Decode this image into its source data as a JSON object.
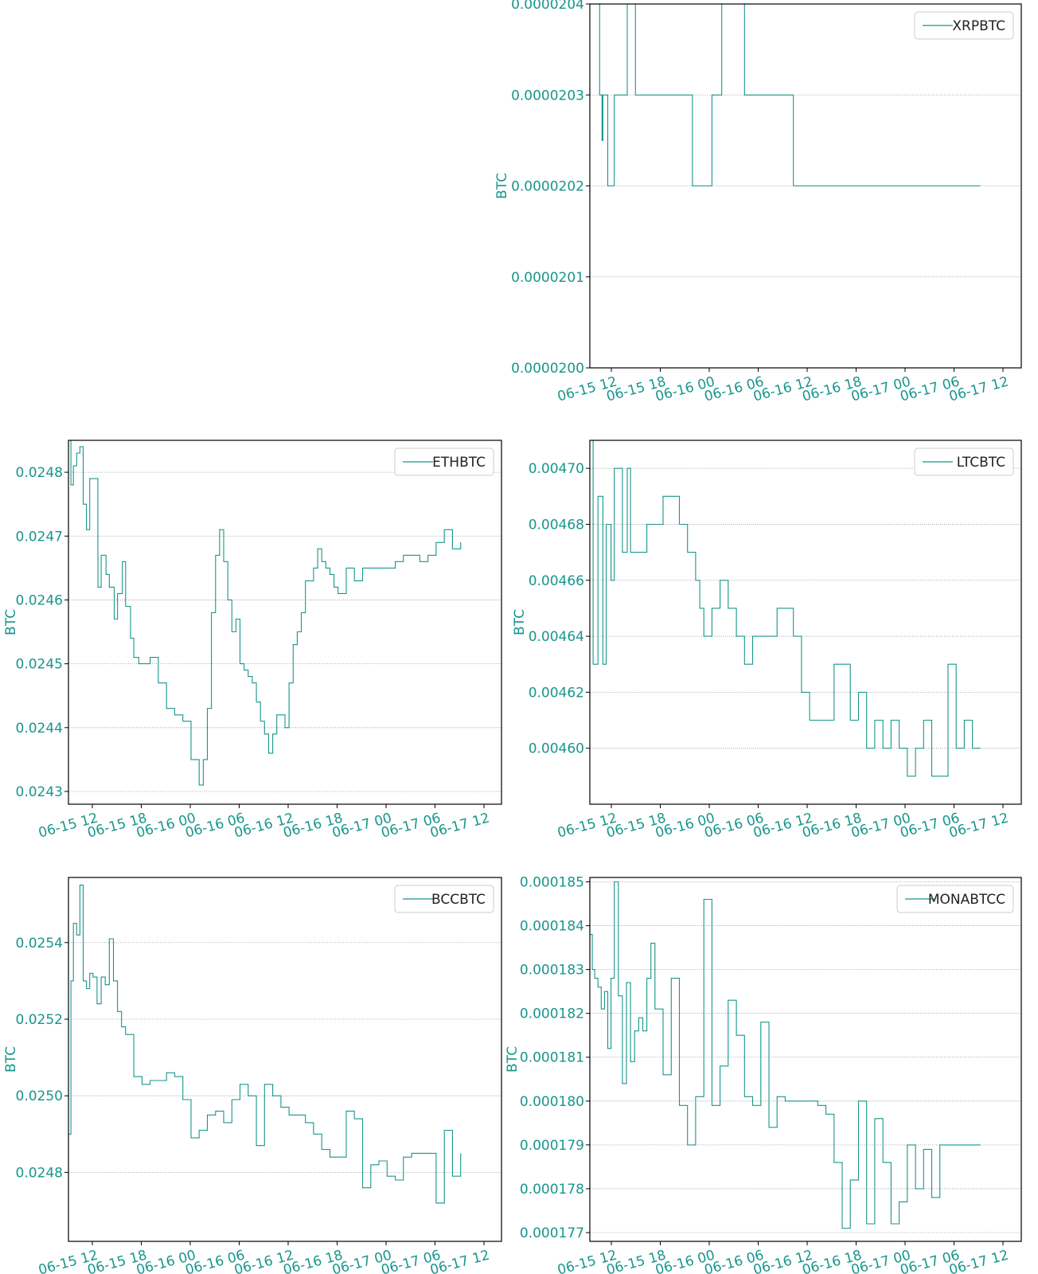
{
  "colors": {
    "accent": "#17968c",
    "frame": "#000000",
    "grid": "#999999"
  },
  "chart_data": [
    {
      "type": "line",
      "ylabel": "BTC",
      "xlabel": "",
      "legend": "top-right",
      "grid": "horizontal dotted",
      "x_tick_labels": [
        "06-15 12",
        "06-15 18",
        "06-16 00",
        "06-16 06",
        "06-16 12",
        "06-16 18",
        "06-17 00",
        "06-17 06",
        "06-17 12"
      ],
      "xlim": [
        0,
        53
      ],
      "ylim": [
        2e-05,
        2.04e-05
      ],
      "y_ticks": [
        2e-05,
        2.01e-05,
        2.02e-05,
        2.03e-05,
        2.04e-05
      ],
      "y_tick_labels": [
        "0.0000200",
        "0.0000201",
        "0.0000202",
        "0.0000203",
        "0.0000204"
      ],
      "series": [
        {
          "name": "XRPBTC",
          "x": [
            0,
            0.4,
            0.6,
            1.0,
            1.2,
            1.5,
            1.6,
            2.0,
            2.2,
            2.6,
            3.0,
            3.5,
            4.2,
            4.6,
            5.3,
            5.6,
            6.0,
            6.4,
            6.8,
            7.2,
            7.8,
            8.4,
            9.5,
            10.4,
            11.1,
            12.4,
            12.6,
            13.1,
            13.5,
            14.0,
            14.4,
            15.0,
            15.6,
            16.2,
            17.5,
            19.0,
            20.0,
            20.5,
            21.0,
            21.5,
            22.0,
            22.5,
            23.5,
            24.0,
            25.0,
            25.5,
            26.5,
            27.5,
            28.0,
            29.0,
            30.0,
            31.0,
            31.2,
            31.6,
            32.0,
            32.6,
            33.0,
            33.5,
            34.0,
            35.0,
            36.0,
            37.0,
            38.0,
            39.0,
            39.5,
            40.5,
            41.0,
            41.5,
            42.0,
            43.0,
            44.0,
            45.0,
            47.0,
            48.0
          ],
          "y": [
            2.04e-05,
            2.04e-05,
            2.05e-05,
            2.05e-05,
            2.03e-05,
            2.025e-05,
            2.03e-05,
            2.03e-05,
            2.02e-05,
            2.02e-05,
            2.03e-05,
            2.03e-05,
            2.03e-05,
            2.04e-05,
            2.04e-05,
            2.03e-05,
            2.03e-05,
            2.03e-05,
            2.03e-05,
            2.03e-05,
            2.03e-05,
            2.03e-05,
            2.03e-05,
            2.03e-05,
            2.03e-05,
            2.03e-05,
            2.02e-05,
            2.02e-05,
            2.02e-05,
            2.02e-05,
            2.02e-05,
            2.03e-05,
            2.03e-05,
            2.04e-05,
            2.04e-05,
            2.03e-05,
            2.03e-05,
            2.03e-05,
            2.03e-05,
            2.03e-05,
            2.03e-05,
            2.03e-05,
            2.03e-05,
            2.03e-05,
            2.02e-05,
            2.02e-05,
            2.02e-05,
            2.02e-05,
            2.02e-05,
            2.02e-05,
            2.02e-05,
            2.02e-05,
            2.02e-05,
            2.02e-05,
            2.02e-05,
            2.02e-05,
            2.02e-05,
            2.02e-05,
            2.02e-05,
            2.02e-05,
            2.02e-05,
            2.02e-05,
            2.02e-05,
            2.02e-05,
            2.02e-05,
            2.02e-05,
            2.02e-05,
            2.02e-05,
            2.02e-05,
            2.02e-05,
            2.02e-05,
            2.02e-05,
            2.02e-05,
            2.02e-05
          ]
        }
      ]
    },
    {
      "type": "line",
      "ylabel": "BTC",
      "xlabel": "",
      "legend": "top-right",
      "grid": "horizontal dotted",
      "x_tick_labels": [
        "06-15 12",
        "06-15 18",
        "06-16 00",
        "06-16 06",
        "06-16 12",
        "06-16 18",
        "06-17 00",
        "06-17 06",
        "06-17 12"
      ],
      "xlim": [
        0,
        53
      ],
      "ylim": [
        0.02428,
        0.02485
      ],
      "y_ticks": [
        0.0243,
        0.0244,
        0.0245,
        0.0246,
        0.0247,
        0.0248
      ],
      "y_tick_labels": [
        "0.0243",
        "0.0244",
        "0.0245",
        "0.0246",
        "0.0247",
        "0.0248"
      ],
      "series": [
        {
          "name": "ETHBTC",
          "x": [
            0,
            0.3,
            0.6,
            1.0,
            1.4,
            1.8,
            2.2,
            2.6,
            3.0,
            3.6,
            4.0,
            4.6,
            5.0,
            5.6,
            6.0,
            6.6,
            7.0,
            7.6,
            8.0,
            8.6,
            9.0,
            9.6,
            10.0,
            11.0,
            12.0,
            13.0,
            14.0,
            15.0,
            16.0,
            16.5,
            17.0,
            17.5,
            18.0,
            18.5,
            19.0,
            19.5,
            20.0,
            20.5,
            21.0,
            21.5,
            22.0,
            22.5,
            23.0,
            23.5,
            24.0,
            24.5,
            25.0,
            25.5,
            26.0,
            26.5,
            27.0,
            27.5,
            28.0,
            28.5,
            29.0,
            29.5,
            30.0,
            30.5,
            31.0,
            31.5,
            32.0,
            32.5,
            33.0,
            34.0,
            35.0,
            36.0,
            37.0,
            38.0,
            39.0,
            40.0,
            41.0,
            42.0,
            43.0,
            44.0,
            45.0,
            46.0,
            47.0,
            48.0
          ],
          "y": [
            0.02485,
            0.02478,
            0.02481,
            0.02483,
            0.02484,
            0.02475,
            0.02471,
            0.02479,
            0.02479,
            0.02462,
            0.02467,
            0.02464,
            0.02462,
            0.02457,
            0.02461,
            0.02466,
            0.02459,
            0.02454,
            0.02451,
            0.0245,
            0.0245,
            0.0245,
            0.02451,
            0.02447,
            0.02443,
            0.02442,
            0.02441,
            0.02435,
            0.02431,
            0.02435,
            0.02443,
            0.02458,
            0.02467,
            0.02471,
            0.02466,
            0.0246,
            0.02455,
            0.02457,
            0.0245,
            0.02449,
            0.02448,
            0.02447,
            0.02444,
            0.02441,
            0.02439,
            0.02436,
            0.02439,
            0.02442,
            0.02442,
            0.0244,
            0.02447,
            0.02453,
            0.02455,
            0.02458,
            0.02463,
            0.02463,
            0.02465,
            0.02468,
            0.02466,
            0.02465,
            0.02464,
            0.02462,
            0.02461,
            0.02465,
            0.02463,
            0.02465,
            0.02465,
            0.02465,
            0.02465,
            0.02466,
            0.02467,
            0.02467,
            0.02466,
            0.02467,
            0.02469,
            0.02471,
            0.02468,
            0.02469
          ]
        }
      ]
    },
    {
      "type": "line",
      "ylabel": "BTC",
      "xlabel": "",
      "legend": "top-right",
      "grid": "horizontal dotted",
      "x_tick_labels": [
        "06-15 12",
        "06-15 18",
        "06-16 00",
        "06-16 06",
        "06-16 12",
        "06-16 18",
        "06-17 00",
        "06-17 06",
        "06-17 12"
      ],
      "xlim": [
        0,
        53
      ],
      "ylim": [
        0.00458,
        0.00471
      ],
      "y_ticks": [
        0.0046,
        0.00462,
        0.00464,
        0.00466,
        0.00468,
        0.0047
      ],
      "y_tick_labels": [
        "0.00460",
        "0.00462",
        "0.00464",
        "0.00466",
        "0.00468",
        "0.00470"
      ],
      "series": [
        {
          "name": "LTCBTC",
          "x": [
            0,
            0.4,
            1.0,
            1.6,
            2.0,
            2.6,
            3.0,
            4.0,
            4.6,
            5.0,
            6.0,
            7.0,
            8.0,
            9.0,
            10.0,
            11.0,
            12.0,
            13.0,
            13.5,
            14.0,
            15.0,
            16.0,
            17.0,
            18.0,
            19.0,
            20.0,
            21.0,
            22.0,
            23.0,
            24.0,
            25.0,
            26.0,
            27.0,
            28.0,
            29.0,
            30.0,
            31.0,
            32.0,
            33.0,
            34.0,
            35.0,
            36.0,
            37.0,
            38.0,
            39.0,
            40.0,
            41.0,
            42.0,
            43.0,
            44.0,
            45.0,
            46.0,
            47.0,
            48.0
          ],
          "y": [
            0.00471,
            0.00463,
            0.00469,
            0.00463,
            0.00468,
            0.00466,
            0.0047,
            0.00467,
            0.0047,
            0.00467,
            0.00467,
            0.00468,
            0.00468,
            0.00469,
            0.00469,
            0.00468,
            0.00467,
            0.00466,
            0.00465,
            0.00464,
            0.00465,
            0.00466,
            0.00465,
            0.00464,
            0.00463,
            0.00464,
            0.00464,
            0.00464,
            0.00465,
            0.00465,
            0.00464,
            0.00462,
            0.00461,
            0.00461,
            0.00461,
            0.00463,
            0.00463,
            0.00461,
            0.00462,
            0.0046,
            0.00461,
            0.0046,
            0.00461,
            0.0046,
            0.00459,
            0.0046,
            0.00461,
            0.00459,
            0.00459,
            0.00463,
            0.0046,
            0.00461,
            0.0046,
            0.0046
          ]
        }
      ]
    },
    {
      "type": "line",
      "ylabel": "BTC",
      "xlabel": "",
      "legend": "top-right",
      "grid": "horizontal dotted",
      "x_tick_labels": [
        "06-15 12",
        "06-15 18",
        "06-16 00",
        "06-16 06",
        "06-16 12",
        "06-16 18",
        "06-17 00",
        "06-17 06",
        "06-17 12"
      ],
      "xlim": [
        0,
        53
      ],
      "ylim": [
        0.02462,
        0.02557
      ],
      "y_ticks": [
        0.0248,
        0.025,
        0.0252,
        0.0254
      ],
      "y_tick_labels": [
        "0.0248",
        "0.0250",
        "0.0252",
        "0.0254"
      ],
      "series": [
        {
          "name": "BCCBTC",
          "x": [
            0,
            0.3,
            0.6,
            1.0,
            1.4,
            1.8,
            2.2,
            2.6,
            3.0,
            3.5,
            4.0,
            4.5,
            5.0,
            5.5,
            6.0,
            6.5,
            7.0,
            8.0,
            9.0,
            10.0,
            11.0,
            12.0,
            13.0,
            14.0,
            15.0,
            16.0,
            17.0,
            18.0,
            19.0,
            20.0,
            21.0,
            22.0,
            23.0,
            24.0,
            25.0,
            26.0,
            27.0,
            28.0,
            29.0,
            30.0,
            31.0,
            32.0,
            33.0,
            34.0,
            35.0,
            36.0,
            37.0,
            38.0,
            39.0,
            40.0,
            41.0,
            42.0,
            43.0,
            44.0,
            45.0,
            46.0,
            47.0,
            48.0
          ],
          "y": [
            0.0249,
            0.0253,
            0.02545,
            0.02542,
            0.02555,
            0.0253,
            0.02528,
            0.02532,
            0.02531,
            0.02524,
            0.02531,
            0.02529,
            0.02541,
            0.0253,
            0.02522,
            0.02518,
            0.02516,
            0.02505,
            0.02503,
            0.02504,
            0.02504,
            0.02506,
            0.02505,
            0.02499,
            0.02489,
            0.02491,
            0.02495,
            0.02496,
            0.02493,
            0.02499,
            0.02503,
            0.025,
            0.02487,
            0.02503,
            0.025,
            0.02497,
            0.02495,
            0.02495,
            0.02493,
            0.0249,
            0.02486,
            0.02484,
            0.02484,
            0.02496,
            0.02494,
            0.02476,
            0.02482,
            0.02483,
            0.02479,
            0.02478,
            0.02484,
            0.02485,
            0.02485,
            0.02485,
            0.02472,
            0.02491,
            0.02479,
            0.02485
          ]
        }
      ]
    },
    {
      "type": "line",
      "ylabel": "BTC",
      "xlabel": "",
      "legend": "top-right",
      "grid": "horizontal dotted",
      "x_tick_labels": [
        "06-15 12",
        "06-15 18",
        "06-16 00",
        "06-16 06",
        "06-16 12",
        "06-16 18",
        "06-17 00",
        "06-17 06",
        "06-17 12"
      ],
      "xlim": [
        0,
        53
      ],
      "ylim": [
        0.0001768,
        0.0001851
      ],
      "y_ticks": [
        0.000177,
        0.000178,
        0.000179,
        0.00018,
        0.000181,
        0.000182,
        0.000183,
        0.000184,
        0.000185
      ],
      "y_tick_labels": [
        "0.000177",
        "0.000178",
        "0.000179",
        "0.000180",
        "0.000181",
        "0.000182",
        "0.000183",
        "0.000184",
        "0.000185"
      ],
      "series": [
        {
          "name": "MONABTCC",
          "x": [
            0,
            0.3,
            0.6,
            1.0,
            1.4,
            1.8,
            2.2,
            2.6,
            3.0,
            3.5,
            4.0,
            4.5,
            5.0,
            5.5,
            6.0,
            6.5,
            7.0,
            7.5,
            8.0,
            9.0,
            10.0,
            11.0,
            12.0,
            13.0,
            14.0,
            15.0,
            16.0,
            17.0,
            18.0,
            19.0,
            20.0,
            21.0,
            22.0,
            23.0,
            24.0,
            25.0,
            26.0,
            27.0,
            28.0,
            29.0,
            30.0,
            31.0,
            32.0,
            33.0,
            34.0,
            35.0,
            36.0,
            37.0,
            38.0,
            39.0,
            40.0,
            41.0,
            42.0,
            43.0,
            44.0,
            45.0,
            46.0,
            47.0,
            48.0
          ],
          "y": [
            0.0001838,
            0.000183,
            0.0001828,
            0.0001826,
            0.0001821,
            0.0001825,
            0.0001812,
            0.0001828,
            0.000185,
            0.0001824,
            0.0001804,
            0.0001827,
            0.0001809,
            0.0001816,
            0.0001819,
            0.0001816,
            0.0001828,
            0.0001836,
            0.0001821,
            0.0001806,
            0.0001828,
            0.0001799,
            0.000179,
            0.0001801,
            0.0001846,
            0.0001799,
            0.0001808,
            0.0001823,
            0.0001815,
            0.0001801,
            0.0001799,
            0.0001818,
            0.0001794,
            0.0001801,
            0.00018,
            0.00018,
            0.00018,
            0.00018,
            0.0001799,
            0.0001797,
            0.0001786,
            0.0001771,
            0.0001782,
            0.00018,
            0.0001772,
            0.0001796,
            0.0001786,
            0.0001772,
            0.0001777,
            0.000179,
            0.000178,
            0.0001789,
            0.0001778,
            0.000179,
            0.000179,
            0.000179,
            0.000179,
            0.000179,
            0.000179
          ]
        }
      ]
    }
  ]
}
